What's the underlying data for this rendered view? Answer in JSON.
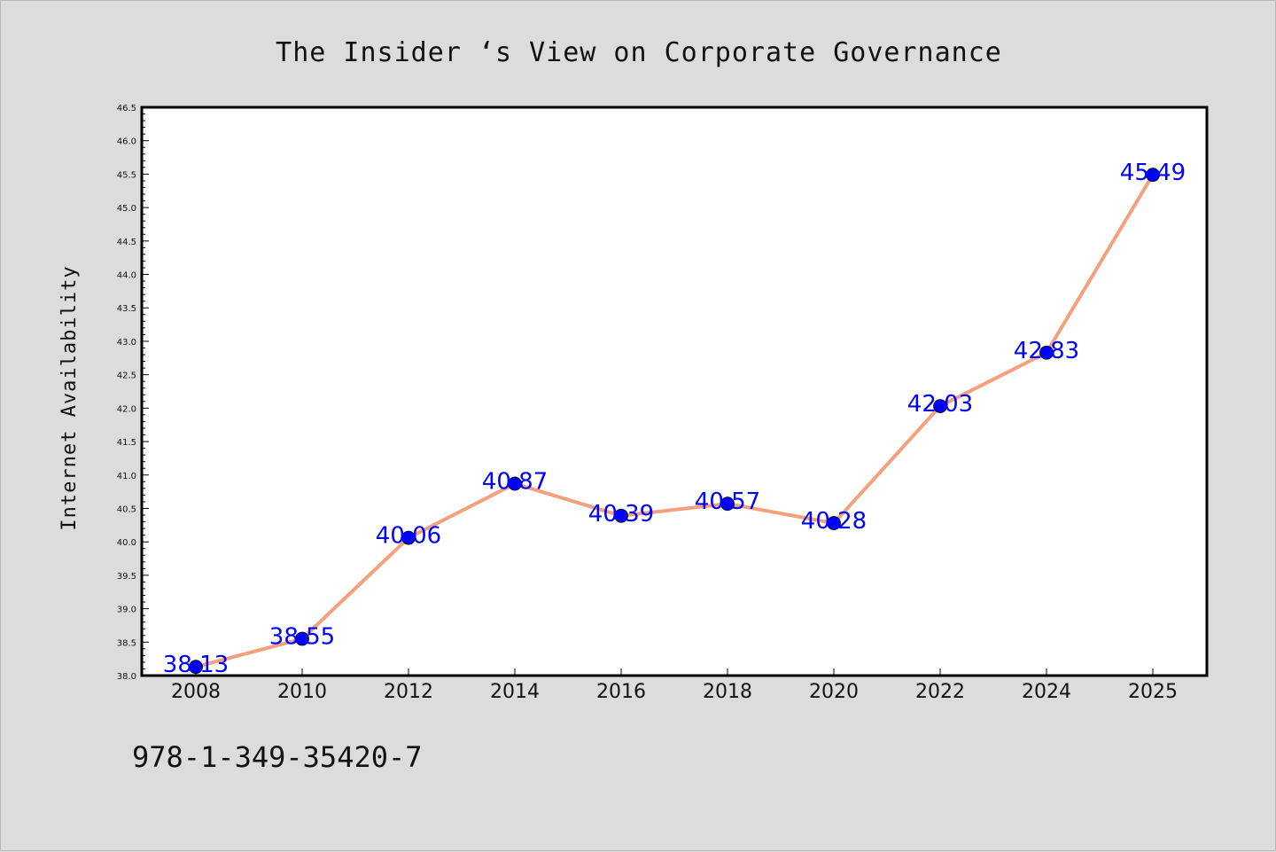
{
  "chart_data": {
    "type": "line",
    "title": "The Insider ‘s View on Corporate Governance",
    "xlabel": "",
    "ylabel": "Internet Availability",
    "categories": [
      "2008",
      "2010",
      "2012",
      "2014",
      "2016",
      "2018",
      "2020",
      "2022",
      "2024",
      "2025"
    ],
    "series": [
      {
        "values": [
          38.13,
          38.55,
          40.06,
          40.87,
          40.39,
          40.57,
          40.28,
          42.03,
          42.83,
          45.49
        ],
        "line_color": "#f4a07c",
        "marker_color": "#0000ff"
      }
    ],
    "data_labels": [
      "38.13",
      "38.55",
      "40.06",
      "40.87",
      "40.39",
      "40.57",
      "40.28",
      "42.03",
      "42.83",
      "45.49"
    ],
    "ylim": [
      38.0,
      46.5
    ],
    "yticks": [
      "38.0",
      "38.5",
      "39.0",
      "39.5",
      "40.0",
      "40.5",
      "41.0",
      "41.5",
      "42.0",
      "42.5",
      "43.0",
      "43.5",
      "44.0",
      "44.5",
      "45.0",
      "45.5",
      "46.0",
      "46.5"
    ],
    "grid": false,
    "legend": "none"
  },
  "footer": {
    "isbn": "978-1-349-35420-7"
  }
}
